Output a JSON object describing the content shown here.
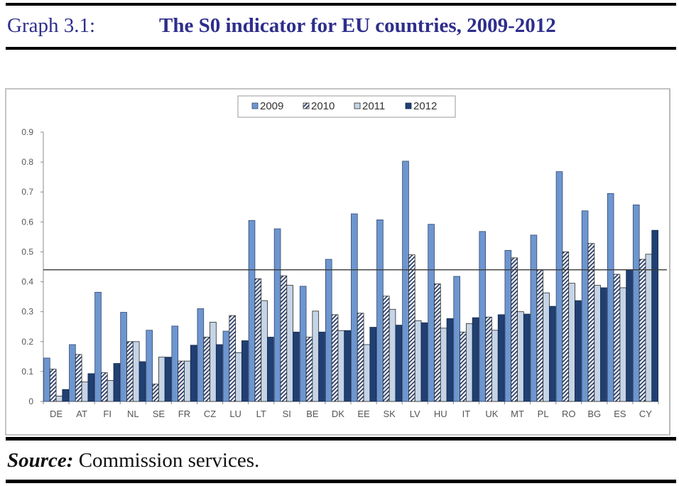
{
  "header": {
    "graph_label": "Graph 3.1:",
    "graph_title": "The S0 indicator for EU countries, 2009-2012"
  },
  "footer": {
    "source_label": "Source:",
    "source_text": " Commission services."
  },
  "colors": {
    "title": "#2e2e8c",
    "s2009": "#6d96d0",
    "s2010_hatch": "#2c3f6b",
    "s2011": "#c5d4e6",
    "s2012": "#203f73",
    "threshold": "#3a3a3a"
  },
  "chart_data": {
    "type": "bar",
    "title": "The S0 indicator for EU countries, 2009-2012",
    "xlabel": "",
    "ylabel": "",
    "ylim": [
      0,
      0.9
    ],
    "yticks": [
      "0",
      "0.1",
      "0.2",
      "0.3",
      "0.4",
      "0.5",
      "0.6",
      "0.7",
      "0.8",
      "0.9"
    ],
    "grid": false,
    "legend_position": "top-center",
    "threshold": 0.44,
    "categories": [
      "DE",
      "AT",
      "FI",
      "NL",
      "SE",
      "FR",
      "CZ",
      "LU",
      "LT",
      "SI",
      "BE",
      "DK",
      "EE",
      "SK",
      "LV",
      "HU",
      "IT",
      "UK",
      "MT",
      "PL",
      "RO",
      "BG",
      "ES",
      "CY"
    ],
    "series": [
      {
        "name": "2009",
        "style": "solid-light",
        "values": [
          0.145,
          0.19,
          0.365,
          0.298,
          0.238,
          0.252,
          0.31,
          0.235,
          0.605,
          0.577,
          0.385,
          0.475,
          0.627,
          0.607,
          0.803,
          0.592,
          0.418,
          0.568,
          0.505,
          0.556,
          0.768,
          0.637,
          0.695,
          0.657
        ]
      },
      {
        "name": "2010",
        "style": "hatched",
        "values": [
          0.108,
          0.157,
          0.096,
          0.2,
          0.058,
          0.135,
          0.215,
          0.287,
          0.41,
          0.42,
          0.215,
          0.29,
          0.295,
          0.352,
          0.49,
          0.393,
          0.232,
          0.282,
          0.48,
          0.44,
          0.5,
          0.528,
          0.425,
          0.475
        ]
      },
      {
        "name": "2011",
        "style": "pale",
        "values": [
          0.018,
          0.065,
          0.07,
          0.2,
          0.148,
          0.135,
          0.265,
          0.163,
          0.337,
          0.388,
          0.302,
          0.237,
          0.19,
          0.308,
          0.27,
          0.245,
          0.26,
          0.238,
          0.3,
          0.363,
          0.395,
          0.388,
          0.38,
          0.492
        ]
      },
      {
        "name": "2012",
        "style": "solid-dark",
        "values": [
          0.04,
          0.093,
          0.127,
          0.133,
          0.148,
          0.188,
          0.19,
          0.203,
          0.215,
          0.232,
          0.232,
          0.237,
          0.248,
          0.255,
          0.263,
          0.277,
          0.28,
          0.29,
          0.292,
          0.318,
          0.337,
          0.38,
          0.44,
          0.572
        ]
      }
    ]
  }
}
